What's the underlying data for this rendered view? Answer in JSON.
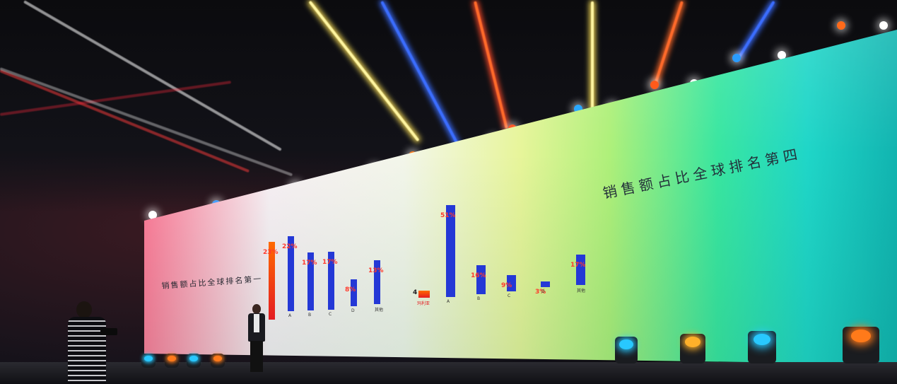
{
  "screen": {
    "title_right": "销售额占比全球排名第四",
    "title_left": "销售额占比全球排名第一"
  },
  "chart_data": [
    {
      "type": "bar",
      "title": "销售额占比全球排名第一",
      "categories": [
        "",
        "A",
        "B",
        "C",
        "D",
        "其他"
      ],
      "values": [
        23,
        22,
        17,
        17,
        8,
        13
      ],
      "value_labels": [
        "23%",
        "22%",
        "17%",
        "17%",
        "8%",
        "13%"
      ],
      "highlight_color": "#ff5a10",
      "series_color": "#2438d6"
    },
    {
      "type": "bar",
      "title": "销售额占比全球排名第四",
      "categories": [
        "玛利亚",
        "A",
        "B",
        "C",
        "D",
        "其他"
      ],
      "values": [
        4,
        51,
        16,
        9,
        3,
        17
      ],
      "value_labels": [
        "4",
        "51%",
        "16%",
        "9%",
        "3%",
        "17%"
      ],
      "highlight_color": "#e41c23",
      "series_color": "#2438d6"
    }
  ],
  "colors": {
    "wall_left": "#ff2a30",
    "wall_mid": "#f3f6ea",
    "wall_right": "#11b4b0"
  },
  "icons": {
    "stage_fixtures": [
      "cyan-moving-head-light-icon",
      "orange-moving-head-light-icon",
      "cyan-moving-head-light-icon",
      "orange-moving-head-light-icon"
    ]
  }
}
